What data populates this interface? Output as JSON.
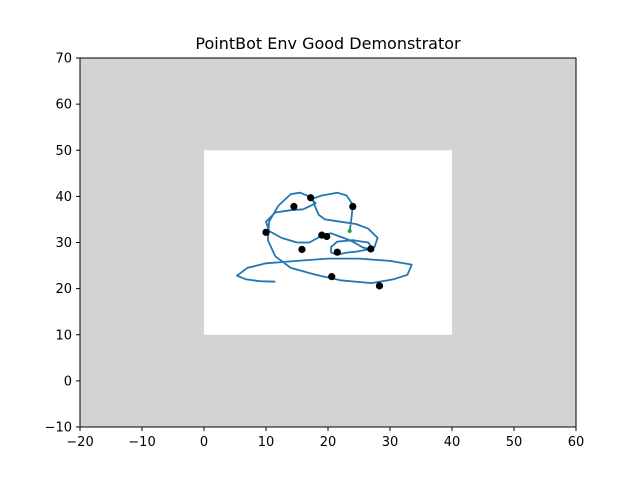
{
  "chart_data": {
    "type": "line",
    "title": "PointBot Env Good Demonstrator",
    "xlabel": "",
    "ylabel": "",
    "xlim": [
      -20,
      60
    ],
    "ylim": [
      -10,
      70
    ],
    "xticks": [
      -20,
      -10,
      0,
      10,
      20,
      30,
      40,
      50,
      60
    ],
    "yticks": [
      -10,
      0,
      10,
      20,
      30,
      40,
      50,
      60,
      70
    ],
    "xtick_labels": [
      "−20",
      "−10",
      "0",
      "10",
      "20",
      "30",
      "40",
      "50",
      "60"
    ],
    "ytick_labels": [
      "−10",
      "0",
      "10",
      "20",
      "30",
      "40",
      "50",
      "60",
      "70"
    ],
    "grid": false,
    "background_color": "#d3d3d3",
    "free_region": {
      "x": [
        0,
        40
      ],
      "y": [
        10,
        50
      ],
      "color": "#ffffff"
    },
    "series": [
      {
        "color": "#1f77b4",
        "points": [
          [
            11.5,
            21.5
          ],
          [
            9,
            21.6
          ],
          [
            6.8,
            22
          ],
          [
            5.3,
            22.8
          ],
          [
            7,
            24.5
          ],
          [
            10,
            25.5
          ],
          [
            15,
            26
          ],
          [
            20,
            26.5
          ],
          [
            25,
            26.5
          ],
          [
            30,
            26
          ],
          [
            33.5,
            25.2
          ],
          [
            32.8,
            23
          ],
          [
            30.5,
            22
          ],
          [
            27,
            21.2
          ],
          [
            22,
            21.8
          ],
          [
            18,
            23
          ],
          [
            14,
            24.5
          ],
          [
            11.5,
            27
          ],
          [
            10.3,
            30.5
          ],
          [
            10.5,
            34.5
          ],
          [
            12,
            38
          ],
          [
            14,
            40.5
          ],
          [
            15.5,
            40.8
          ],
          [
            17,
            40
          ],
          [
            18,
            38.5
          ],
          [
            16,
            37.2
          ],
          [
            14,
            37
          ],
          [
            11.5,
            36.5
          ],
          [
            10,
            34.5
          ],
          [
            10.5,
            32.5
          ],
          [
            12.5,
            31
          ],
          [
            15,
            30
          ],
          [
            17,
            30
          ],
          [
            19,
            31.5
          ],
          [
            20.5,
            32
          ],
          [
            21.5,
            31.5
          ],
          [
            22.5,
            31
          ],
          [
            23.5,
            30.5
          ],
          [
            24.5,
            29.8
          ],
          [
            25.5,
            29
          ],
          [
            26.5,
            28.6
          ],
          [
            27,
            29
          ],
          [
            26.5,
            30
          ],
          [
            25.5,
            30.2
          ],
          [
            24,
            30.5
          ],
          [
            21.5,
            30.2
          ],
          [
            20.5,
            29
          ],
          [
            20.5,
            27.8
          ],
          [
            21.5,
            27.4
          ],
          [
            22,
            27.5
          ],
          [
            23,
            27.8
          ],
          [
            24.5,
            28
          ],
          [
            26.5,
            28.5
          ],
          [
            27.5,
            29
          ],
          [
            28,
            31
          ],
          [
            26.5,
            33
          ],
          [
            24.5,
            34
          ],
          [
            22,
            34.5
          ],
          [
            19.5,
            35
          ],
          [
            18.5,
            36
          ],
          [
            18,
            37.5
          ],
          [
            17.5,
            39.5
          ],
          [
            19,
            40.2
          ],
          [
            21.5,
            40.8
          ],
          [
            23,
            40.2
          ],
          [
            24,
            38.2
          ],
          [
            23.8,
            35.5
          ],
          [
            23.5,
            32.5
          ]
        ]
      }
    ],
    "markers": [
      {
        "color": "#000000",
        "points": [
          [
            14.5,
            37.8
          ],
          [
            17.2,
            39.7
          ],
          [
            24,
            37.8
          ],
          [
            10,
            32.2
          ],
          [
            15.8,
            28.5
          ],
          [
            19,
            31.6
          ],
          [
            19.8,
            31.3
          ],
          [
            21.5,
            27.9
          ],
          [
            26.9,
            28.6
          ],
          [
            20.6,
            22.6
          ],
          [
            28.3,
            20.6
          ]
        ]
      }
    ],
    "end_marker": {
      "color": "#2ca02c",
      "point": [
        23.5,
        32.5
      ]
    }
  }
}
